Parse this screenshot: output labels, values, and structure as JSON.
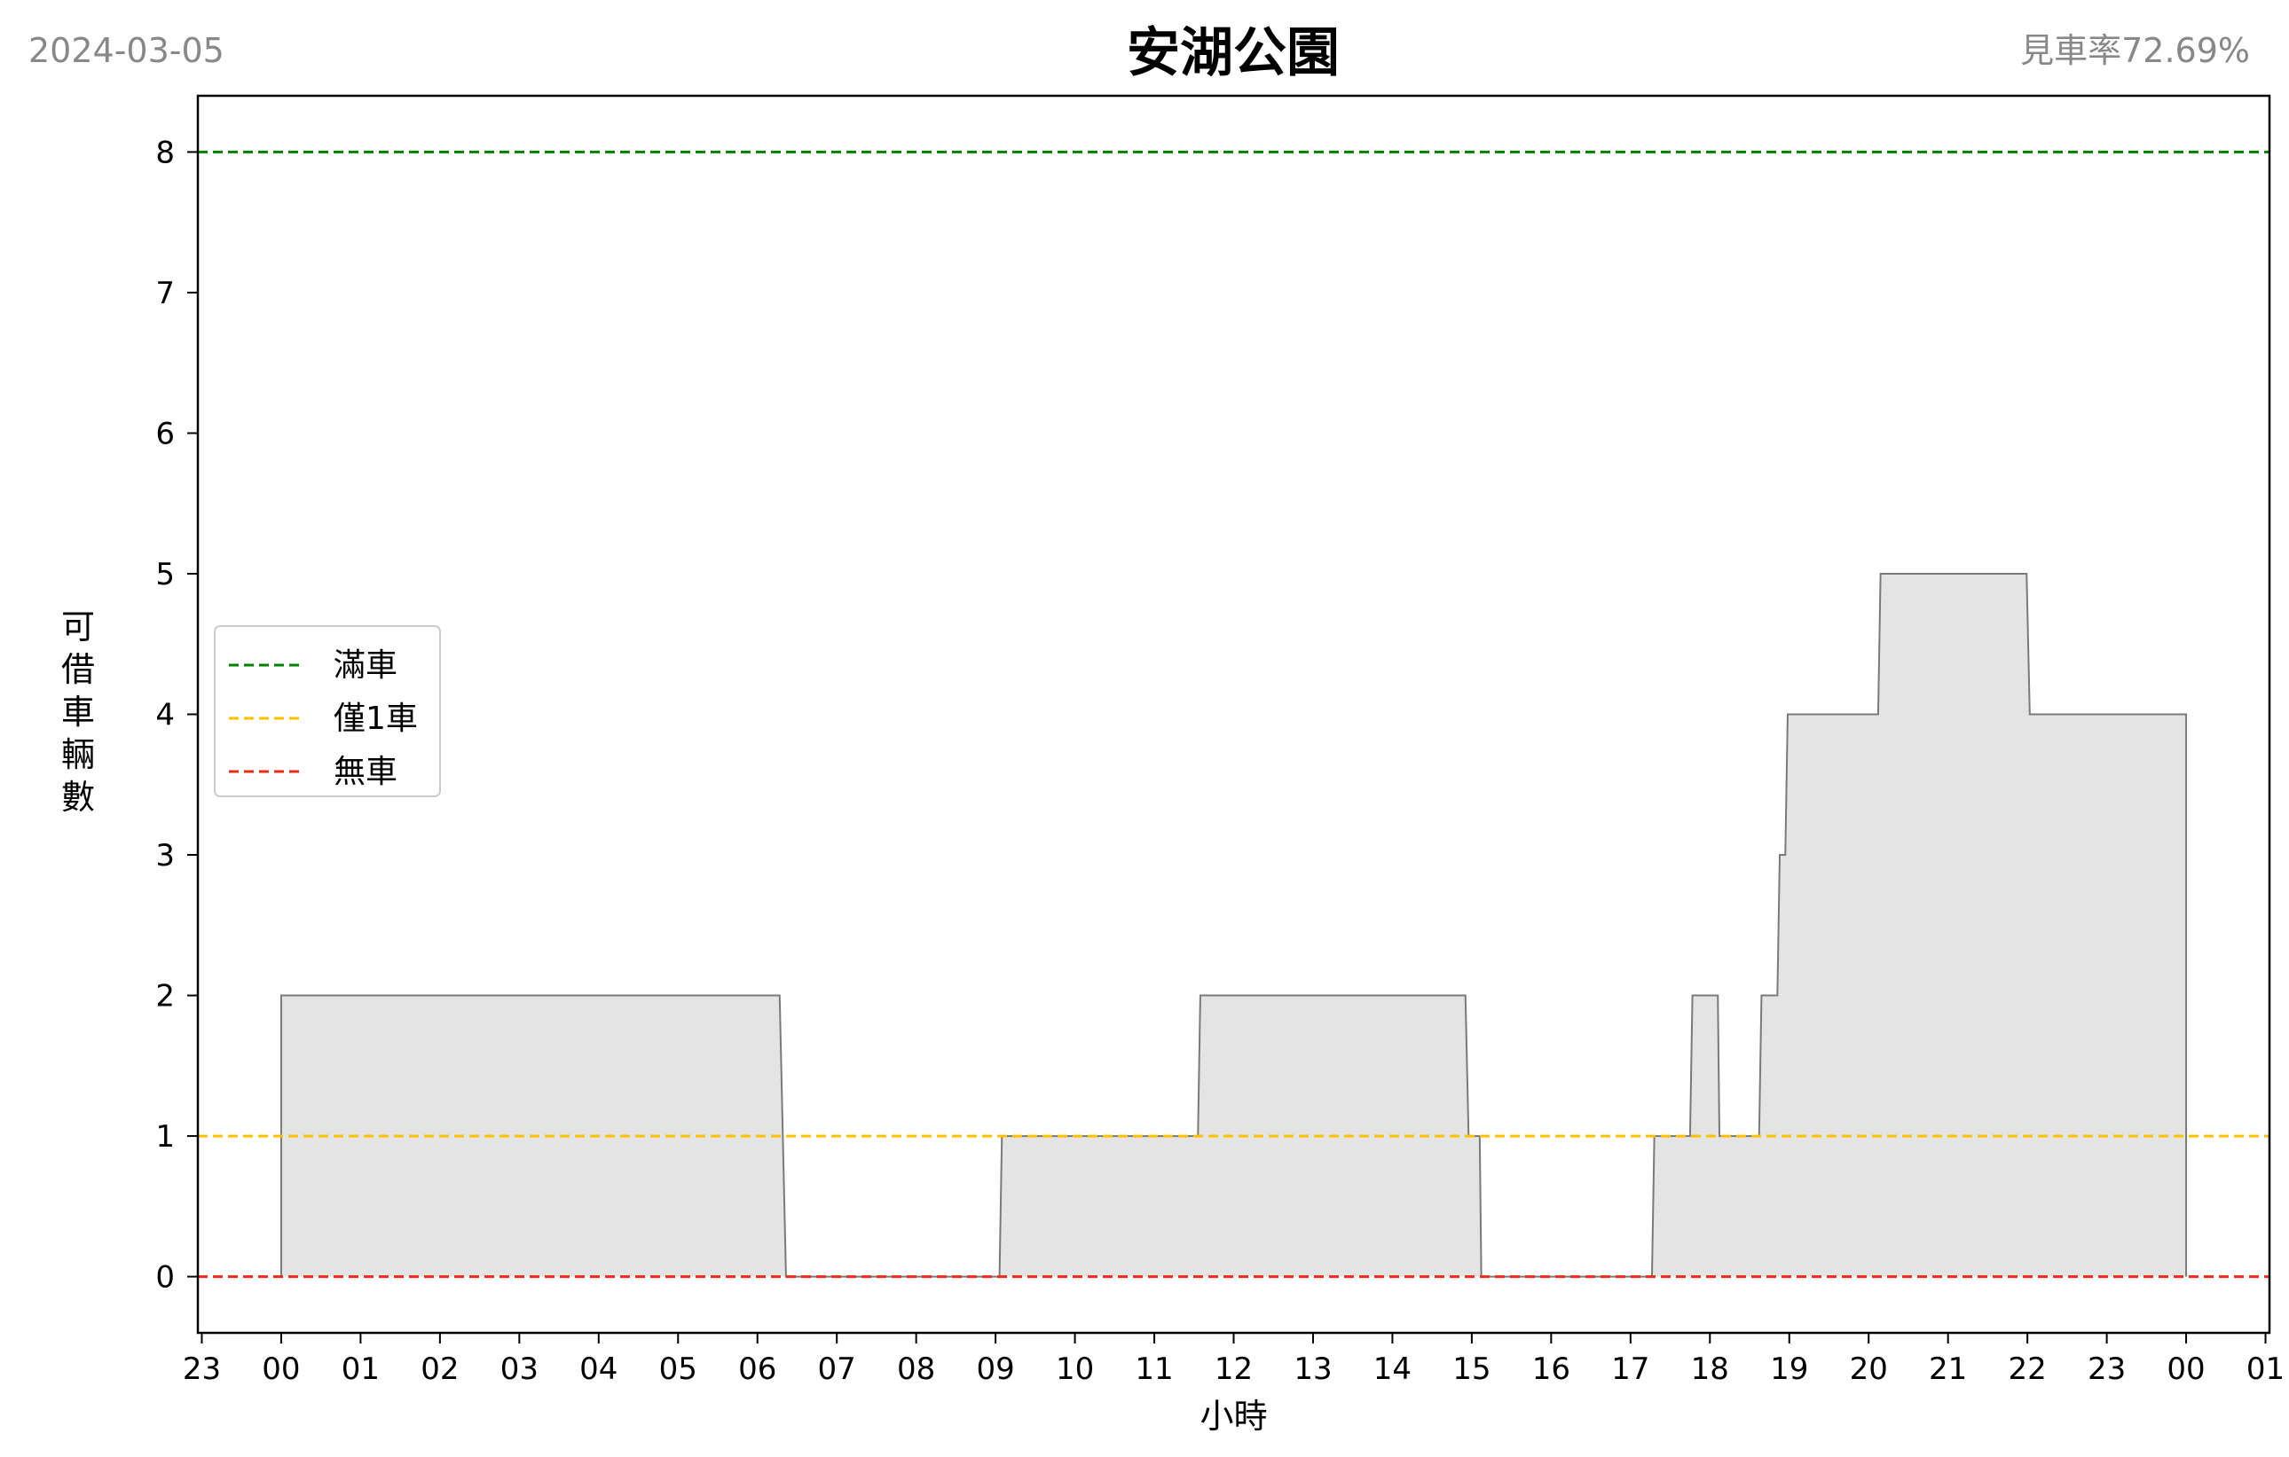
{
  "header": {
    "date": "2024-03-05",
    "title": "安湖公園",
    "rate": "見車率72.69%"
  },
  "chart_data": {
    "type": "area",
    "step": true,
    "xlabel": "小時",
    "ylabel": "可借車輛數",
    "xlim": [
      -1.05,
      25.05
    ],
    "ylim": [
      -0.4,
      8.4
    ],
    "x_ticks": [
      -1,
      0,
      1,
      2,
      3,
      4,
      5,
      6,
      7,
      8,
      9,
      10,
      11,
      12,
      13,
      14,
      15,
      16,
      17,
      18,
      19,
      20,
      21,
      22,
      23,
      24,
      25
    ],
    "x_tick_labels": [
      "23",
      "00",
      "01",
      "02",
      "03",
      "04",
      "05",
      "06",
      "07",
      "08",
      "09",
      "10",
      "11",
      "12",
      "13",
      "14",
      "15",
      "16",
      "17",
      "18",
      "19",
      "20",
      "21",
      "22",
      "23",
      "00",
      "01"
    ],
    "y_ticks": [
      0,
      1,
      2,
      3,
      4,
      5,
      6,
      7,
      8
    ],
    "fill_color": "#e4e4e4",
    "line_color": "#7a7a7a",
    "points": [
      [
        0,
        0
      ],
      [
        0,
        2
      ],
      [
        6.28,
        2
      ],
      [
        6.32,
        1
      ],
      [
        6.36,
        0
      ],
      [
        9.05,
        0
      ],
      [
        9.08,
        1
      ],
      [
        11.55,
        1
      ],
      [
        11.58,
        2
      ],
      [
        14.92,
        2
      ],
      [
        14.96,
        1
      ],
      [
        15.1,
        1
      ],
      [
        15.12,
        0
      ],
      [
        17.27,
        0
      ],
      [
        17.3,
        1
      ],
      [
        17.75,
        1
      ],
      [
        17.78,
        2
      ],
      [
        18.1,
        2
      ],
      [
        18.12,
        1
      ],
      [
        18.62,
        1
      ],
      [
        18.65,
        2
      ],
      [
        18.85,
        2
      ],
      [
        18.88,
        3
      ],
      [
        18.95,
        3
      ],
      [
        18.98,
        4
      ],
      [
        20.12,
        4
      ],
      [
        20.15,
        5
      ],
      [
        21.99,
        5
      ],
      [
        22.03,
        4
      ],
      [
        24.0,
        4
      ],
      [
        24.0,
        0
      ]
    ],
    "legend": {
      "placement": "center-left",
      "entries": [
        {
          "label": "滿車",
          "value": 8,
          "color": "#008000"
        },
        {
          "label": "僅1車",
          "value": 1,
          "color": "#ffc000"
        },
        {
          "label": "無車",
          "value": 0,
          "color": "#ee2a1a"
        }
      ]
    }
  }
}
